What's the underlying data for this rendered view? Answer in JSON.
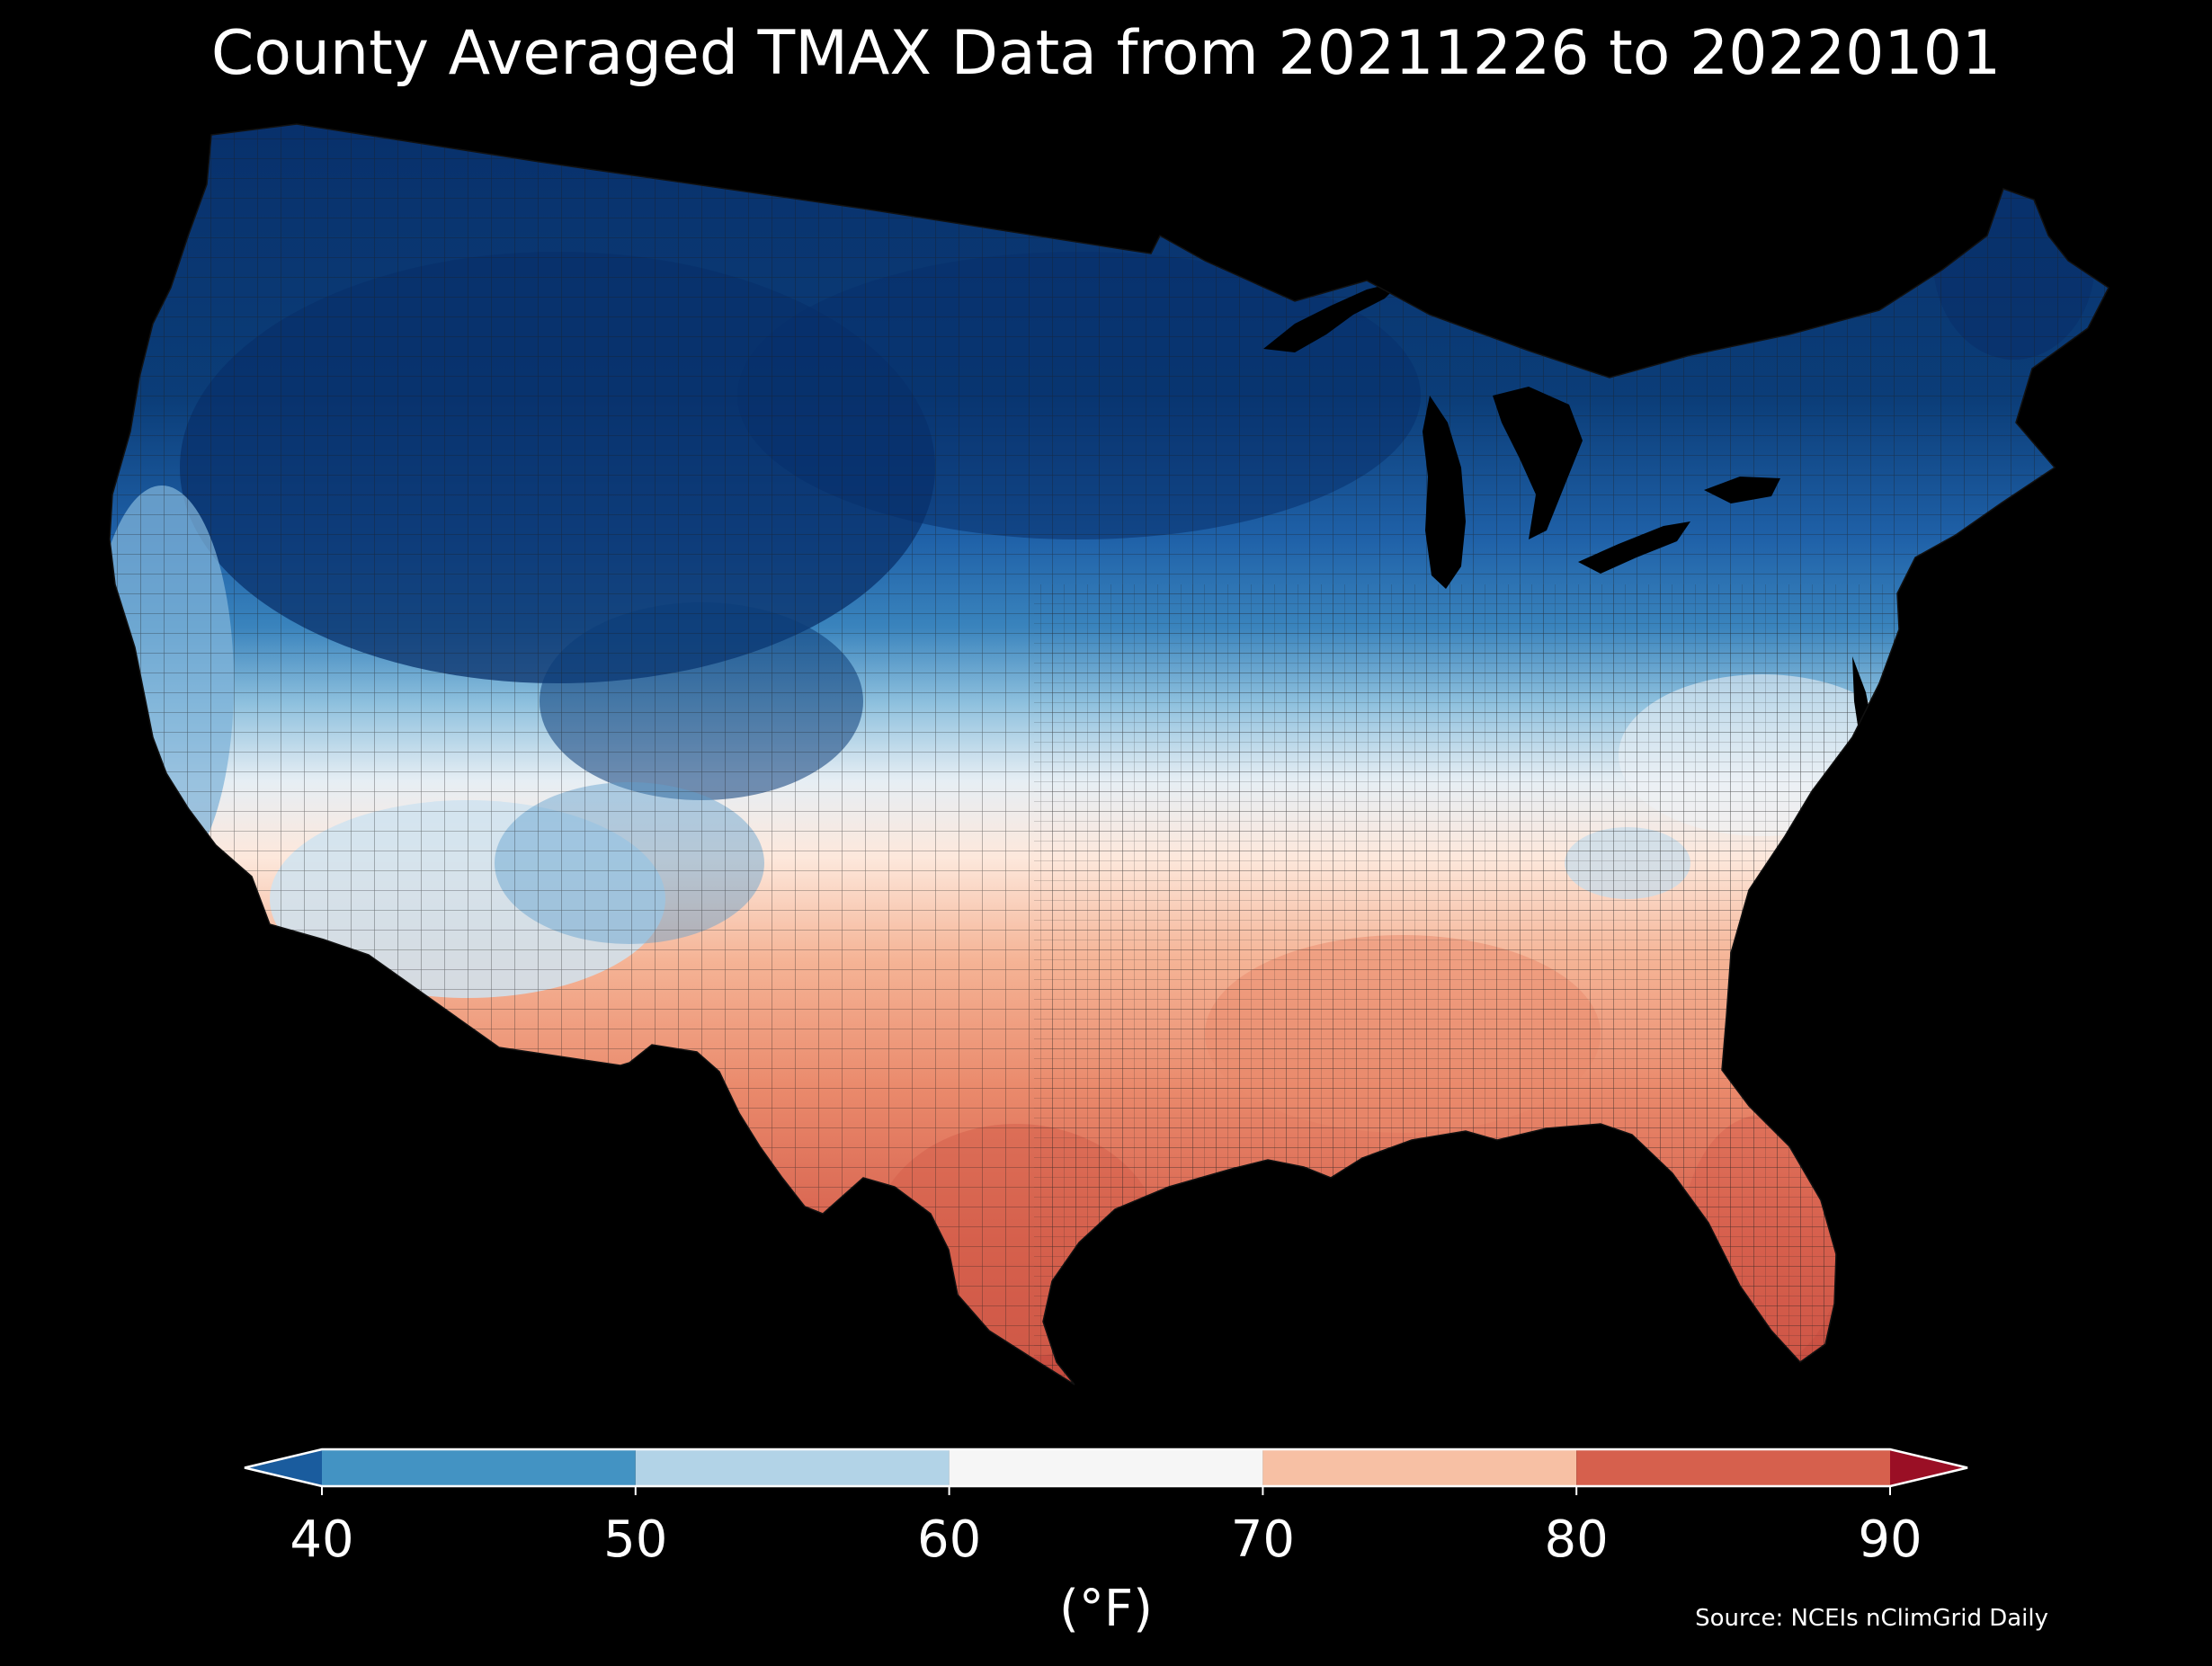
{
  "title": "County Averaged TMAX Data from 20211226 to 20220101",
  "colorbar": {
    "unit_label": "(°F)",
    "ticks": [
      "40",
      "50",
      "60",
      "70",
      "80",
      "90"
    ],
    "min": 40,
    "max": 90,
    "bins": [
      {
        "from": 40,
        "to": 50,
        "color": "#4393c3"
      },
      {
        "from": 50,
        "to": 60,
        "color": "#b2d3e7"
      },
      {
        "from": 60,
        "to": 70,
        "color": "#f6f6f6"
      },
      {
        "from": 70,
        "to": 80,
        "color": "#f7c0a4"
      },
      {
        "from": 80,
        "to": 90,
        "color": "#d6604d"
      }
    ],
    "under_color": "#1a5c9e",
    "over_color": "#9a0f25"
  },
  "source": "Source: NCEIs nClimGrid Daily",
  "background_color": "#000000"
}
